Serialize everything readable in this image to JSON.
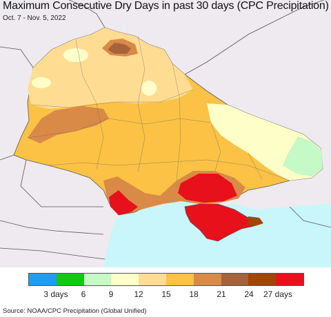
{
  "header": {
    "title": "Maximum Consecutive Dry Days in past 30 days (CPC Precipitation)",
    "subtitle": "Oct. 7 - Nov. 5, 2022"
  },
  "legend": {
    "colors": [
      "#1e9df0",
      "#11c913",
      "#c5f9c5",
      "#fefec8",
      "#fedd92",
      "#fbc245",
      "#d98a47",
      "#a6623a",
      "#a24503",
      "#e8101a"
    ],
    "tick_labels": [
      "3 days",
      "6",
      "9",
      "12",
      "15",
      "18",
      "21",
      "24",
      "27 days"
    ]
  },
  "map": {
    "land_color": "#eeeaf0",
    "sea_color": "#c8f6fa",
    "dominant_category_color": "#fbc245"
  },
  "footer": {
    "source": "Source: NOAA/CPC Precipitation (Global Unified)"
  }
}
